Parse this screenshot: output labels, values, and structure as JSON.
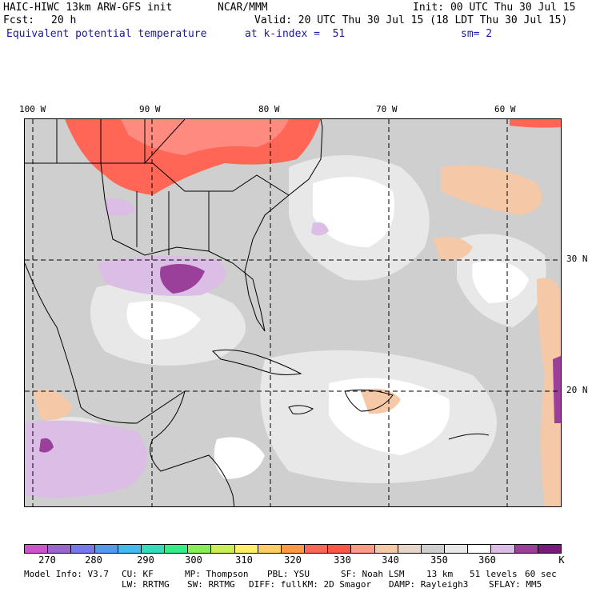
{
  "header": {
    "model": "HAIC-HIWC 13km ARW-GFS init",
    "center": "NCAR/MMM",
    "init": "Init: 00 UTC Thu 30 Jul 15",
    "fcst_label": "Fcst:",
    "fcst_value": "20 h",
    "valid": "Valid: 20 UTC Thu 30 Jul 15 (18 LDT Thu 30 Jul 15)",
    "field": "Equivalent potential temperature",
    "level": "at k-index =  51",
    "smoothing": "sm= 2"
  },
  "axes": {
    "lon_labels": [
      "100 W",
      "90 W",
      "80 W",
      "70 W",
      "60 W"
    ],
    "lat_labels": [
      "30 N",
      "20 N"
    ]
  },
  "colorbar": {
    "colors": [
      "#cc55cc",
      "#9966cc",
      "#7777ee",
      "#5599ee",
      "#44bbee",
      "#33ddbb",
      "#33ee88",
      "#88ee55",
      "#ccee55",
      "#ffee66",
      "#ffcc66",
      "#ff9944",
      "#ff6655",
      "#ff5544",
      "#ff9988",
      "#f5c8a8",
      "#e6d6c8",
      "#cfcfcf",
      "#e8e8e8",
      "#ffffff",
      "#dcbde6",
      "#9a3f9a",
      "#7a1a7a"
    ],
    "tick_labels": [
      "270",
      "280",
      "290",
      "300",
      "310",
      "320",
      "330",
      "340",
      "350",
      "360"
    ],
    "unit": "K"
  },
  "footer": {
    "line1": [
      "Model Info: V3.7",
      "CU: KF",
      "MP: Thompson",
      "PBL: YSU",
      "SF: Noah LSM",
      "13 km",
      "51 levels",
      "60 sec"
    ],
    "line2": [
      "LW: RRTMG",
      "SW: RRTMG",
      "DIFF: full",
      "KM: 2D Smagor",
      "DAMP: Rayleigh3",
      "SFLAY: MM5"
    ]
  }
}
